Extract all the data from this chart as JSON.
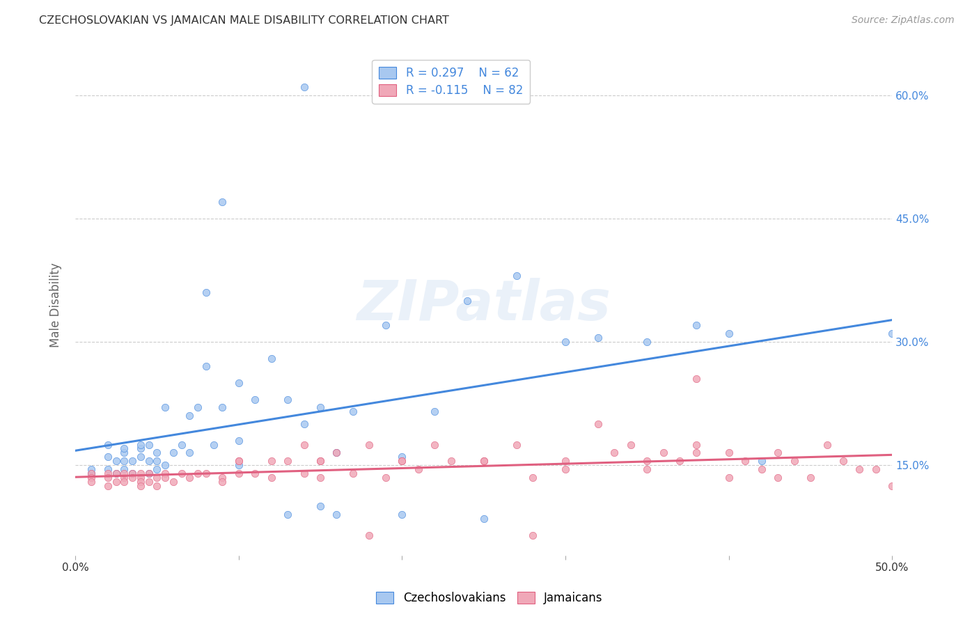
{
  "title": "CZECHOSLOVAKIAN VS JAMAICAN MALE DISABILITY CORRELATION CHART",
  "source": "Source: ZipAtlas.com",
  "ylabel": "Male Disability",
  "xlim": [
    0.0,
    0.5
  ],
  "ylim": [
    0.04,
    0.65
  ],
  "yticks": [
    0.15,
    0.3,
    0.45,
    0.6
  ],
  "ytick_labels": [
    "15.0%",
    "30.0%",
    "45.0%",
    "60.0%"
  ],
  "xticks": [
    0.0,
    0.1,
    0.2,
    0.3,
    0.4,
    0.5
  ],
  "xtick_labels": [
    "0.0%",
    "",
    "",
    "",
    "",
    "50.0%"
  ],
  "czech_color": "#a8c8f0",
  "jamaican_color": "#f0a8b8",
  "czech_line_color": "#4488dd",
  "jamaican_line_color": "#e06080",
  "czech_R": 0.297,
  "czech_N": 62,
  "jamaican_R": -0.115,
  "jamaican_N": 82,
  "legend_label_czech": "Czechoslovakians",
  "legend_label_jamaican": "Jamaicans",
  "background_color": "#ffffff",
  "watermark": "ZIPatlas",
  "czech_scatter_x": [
    0.01,
    0.01,
    0.02,
    0.02,
    0.02,
    0.025,
    0.025,
    0.03,
    0.03,
    0.03,
    0.03,
    0.035,
    0.035,
    0.04,
    0.04,
    0.04,
    0.045,
    0.045,
    0.045,
    0.05,
    0.05,
    0.05,
    0.055,
    0.055,
    0.06,
    0.065,
    0.07,
    0.07,
    0.075,
    0.08,
    0.085,
    0.09,
    0.1,
    0.1,
    0.11,
    0.12,
    0.13,
    0.14,
    0.15,
    0.16,
    0.17,
    0.19,
    0.2,
    0.22,
    0.24,
    0.27,
    0.3,
    0.32,
    0.35,
    0.38,
    0.4,
    0.42,
    0.14,
    0.15,
    0.16,
    0.2,
    0.25,
    0.1,
    0.13,
    0.08,
    0.09,
    0.5
  ],
  "czech_scatter_y": [
    0.14,
    0.145,
    0.145,
    0.16,
    0.175,
    0.14,
    0.155,
    0.145,
    0.155,
    0.165,
    0.17,
    0.14,
    0.155,
    0.16,
    0.17,
    0.175,
    0.14,
    0.155,
    0.175,
    0.145,
    0.155,
    0.165,
    0.15,
    0.22,
    0.165,
    0.175,
    0.21,
    0.165,
    0.22,
    0.27,
    0.175,
    0.22,
    0.15,
    0.25,
    0.23,
    0.28,
    0.23,
    0.2,
    0.22,
    0.165,
    0.215,
    0.32,
    0.16,
    0.215,
    0.35,
    0.38,
    0.3,
    0.305,
    0.3,
    0.32,
    0.31,
    0.155,
    0.61,
    0.1,
    0.09,
    0.09,
    0.085,
    0.18,
    0.09,
    0.36,
    0.47,
    0.31
  ],
  "jamaican_scatter_x": [
    0.01,
    0.01,
    0.01,
    0.02,
    0.02,
    0.02,
    0.025,
    0.025,
    0.03,
    0.03,
    0.03,
    0.035,
    0.035,
    0.04,
    0.04,
    0.04,
    0.04,
    0.045,
    0.045,
    0.05,
    0.05,
    0.055,
    0.055,
    0.06,
    0.065,
    0.07,
    0.075,
    0.08,
    0.09,
    0.09,
    0.1,
    0.1,
    0.11,
    0.12,
    0.13,
    0.14,
    0.14,
    0.15,
    0.15,
    0.16,
    0.17,
    0.18,
    0.19,
    0.2,
    0.21,
    0.22,
    0.23,
    0.25,
    0.27,
    0.28,
    0.3,
    0.32,
    0.35,
    0.37,
    0.38,
    0.4,
    0.41,
    0.42,
    0.43,
    0.44,
    0.45,
    0.47,
    0.48,
    0.49,
    0.5,
    0.1,
    0.12,
    0.15,
    0.2,
    0.25,
    0.3,
    0.33,
    0.34,
    0.35,
    0.36,
    0.38,
    0.4,
    0.43,
    0.46,
    0.38,
    0.28,
    0.18
  ],
  "jamaican_scatter_y": [
    0.14,
    0.135,
    0.13,
    0.14,
    0.135,
    0.125,
    0.14,
    0.13,
    0.135,
    0.14,
    0.13,
    0.14,
    0.135,
    0.14,
    0.135,
    0.13,
    0.125,
    0.14,
    0.13,
    0.135,
    0.125,
    0.14,
    0.135,
    0.13,
    0.14,
    0.135,
    0.14,
    0.14,
    0.135,
    0.13,
    0.14,
    0.155,
    0.14,
    0.135,
    0.155,
    0.14,
    0.175,
    0.155,
    0.135,
    0.165,
    0.14,
    0.175,
    0.135,
    0.155,
    0.145,
    0.175,
    0.155,
    0.155,
    0.175,
    0.135,
    0.145,
    0.2,
    0.145,
    0.155,
    0.175,
    0.135,
    0.155,
    0.145,
    0.135,
    0.155,
    0.135,
    0.155,
    0.145,
    0.145,
    0.125,
    0.155,
    0.155,
    0.155,
    0.155,
    0.155,
    0.155,
    0.165,
    0.175,
    0.155,
    0.165,
    0.165,
    0.165,
    0.165,
    0.175,
    0.255,
    0.065,
    0.065
  ]
}
